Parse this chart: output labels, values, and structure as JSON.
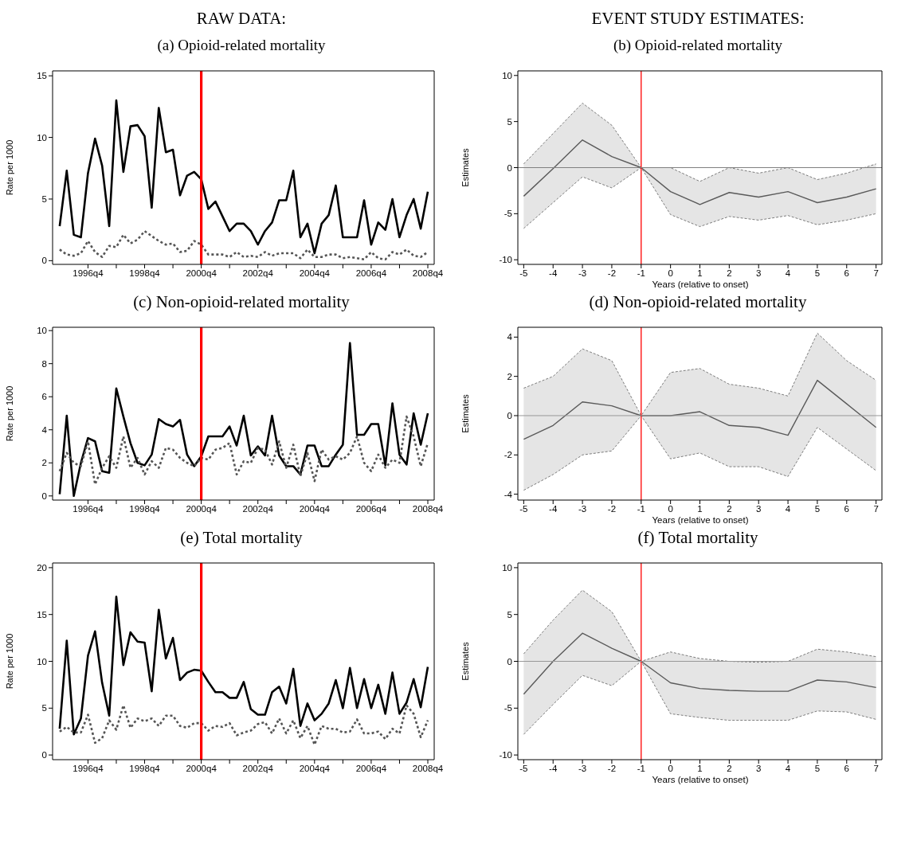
{
  "chart_data": [
    {
      "type": "line",
      "title": "RAW DATA:",
      "subtitle": "(a) Opioid-related mortality",
      "ylabel": "Rate per 1000",
      "categories": [
        null,
        null,
        null,
        null,
        "1996q4",
        null,
        null,
        null,
        null,
        null,
        null,
        null,
        "1998q4",
        null,
        null,
        null,
        null,
        null,
        null,
        null,
        "2000q4",
        null,
        null,
        null,
        null,
        null,
        null,
        null,
        "2002q4",
        null,
        null,
        null,
        null,
        null,
        null,
        null,
        "2004q4",
        null,
        null,
        null,
        null,
        null,
        null,
        null,
        "2006q4",
        null,
        null,
        null,
        null,
        null,
        null,
        null,
        "2008q4"
      ],
      "series": [
        {
          "color": "#000000",
          "line_style": "solid",
          "values": [
            2.8,
            7.3,
            2.1,
            1.9,
            7.1,
            9.9,
            7.7,
            2.8,
            13.0,
            7.2,
            10.9,
            11.0,
            10.1,
            4.3,
            12.4,
            8.8,
            9.0,
            5.3,
            6.9,
            7.2,
            6.6,
            4.2,
            4.8,
            3.6,
            2.4,
            3.0,
            3.0,
            2.4,
            1.3,
            2.4,
            3.1,
            4.9,
            4.9,
            7.3,
            1.9,
            3.0,
            0.6,
            3.0,
            3.7,
            6.1,
            1.9,
            1.9,
            1.9,
            4.9,
            1.3,
            3.1,
            2.5,
            5.0,
            1.9,
            3.7,
            5.0,
            2.6,
            5.6
          ]
        },
        {
          "color": "#555555",
          "line_style": "dotted",
          "values": [
            0.9,
            0.5,
            0.4,
            0.6,
            1.6,
            0.7,
            0.3,
            1.2,
            1.1,
            2.1,
            1.4,
            1.7,
            2.4,
            2.0,
            1.6,
            1.3,
            1.4,
            0.7,
            0.8,
            1.6,
            1.3,
            0.5,
            0.5,
            0.5,
            0.3,
            0.7,
            0.3,
            0.4,
            0.3,
            0.7,
            0.4,
            0.6,
            0.6,
            0.6,
            0.2,
            0.9,
            0.3,
            0.3,
            0.5,
            0.5,
            0.2,
            0.3,
            0.2,
            0.1,
            0.7,
            0.2,
            0.1,
            0.7,
            0.5,
            0.9,
            0.4,
            0.3,
            0.7
          ]
        }
      ],
      "ylim": [
        -0.3,
        15.4
      ],
      "yticks": [
        0,
        5,
        10,
        15
      ],
      "ref_lines": [
        {
          "axis": "x",
          "value": "2000q4",
          "color": "#ff0000"
        }
      ]
    },
    {
      "type": "line",
      "title": "EVENT STUDY ESTIMATES:",
      "subtitle": "(b) Opioid-related mortality",
      "xlabel": "Years (relative to onset)",
      "ylabel": "Estimates",
      "x": [
        -5,
        -4,
        -3,
        -2,
        -1,
        0,
        1,
        2,
        3,
        4,
        5,
        6,
        7
      ],
      "series": [
        {
          "color": "#5a5a5a",
          "line_style": "solid",
          "values": [
            -3.1,
            -0.1,
            3.0,
            1.2,
            0,
            -2.6,
            -4.0,
            -2.7,
            -3.2,
            -2.6,
            -3.8,
            -3.2,
            -2.3
          ],
          "lower": [
            -6.6,
            -3.8,
            -1.0,
            -2.2,
            0,
            -5.1,
            -6.4,
            -5.3,
            -5.7,
            -5.2,
            -6.2,
            -5.7,
            -5.0
          ],
          "upper": [
            0.4,
            3.7,
            7.0,
            4.6,
            0,
            0.0,
            -1.5,
            0.0,
            -0.6,
            0.0,
            -1.3,
            -0.6,
            0.4
          ]
        },
        {
          "color": "#6e6e6e",
          "line_style": "dashed",
          "values": [
            0.4,
            3.7,
            7.0,
            4.6,
            0,
            0.0,
            -1.5,
            0.0,
            -0.6,
            0.0,
            -1.3,
            -0.6,
            0.4
          ]
        },
        {
          "color": "#6e6e6e",
          "line_style": "dashed",
          "values": [
            -6.6,
            -3.8,
            -1.0,
            -2.2,
            0,
            -5.1,
            -6.4,
            -5.3,
            -5.7,
            -5.2,
            -6.2,
            -5.7,
            -5.0
          ]
        }
      ],
      "xlim": [
        -5.2,
        7.2
      ],
      "xticks": [
        -5,
        -4,
        -3,
        -2,
        -1,
        0,
        1,
        2,
        3,
        4,
        5,
        6,
        7
      ],
      "ylim": [
        -10.5,
        10.5
      ],
      "yticks": [
        -10,
        -5,
        0,
        5,
        10
      ],
      "ref_lines": [
        {
          "axis": "x",
          "value": -1,
          "color": "#ff0000"
        },
        {
          "axis": "y",
          "value": 0,
          "color": "#808080"
        }
      ]
    },
    {
      "type": "line",
      "title": "(c) Non-opioid-related mortality",
      "ylabel": "Rate per 1000",
      "categories": [
        null,
        null,
        null,
        null,
        "1996q4",
        null,
        null,
        null,
        null,
        null,
        null,
        null,
        "1998q4",
        null,
        null,
        null,
        null,
        null,
        null,
        null,
        "2000q4",
        null,
        null,
        null,
        null,
        null,
        null,
        null,
        "2002q4",
        null,
        null,
        null,
        null,
        null,
        null,
        null,
        "2004q4",
        null,
        null,
        null,
        null,
        null,
        null,
        null,
        "2006q4",
        null,
        null,
        null,
        null,
        null,
        null,
        null,
        "2008q4"
      ],
      "series": [
        {
          "color": "#000000",
          "line_style": "solid",
          "values": [
            0.1,
            4.85,
            0.0,
            2.0,
            3.5,
            3.3,
            1.5,
            1.4,
            6.5,
            4.8,
            3.2,
            2.0,
            1.85,
            2.5,
            4.65,
            4.35,
            4.2,
            4.6,
            2.5,
            1.8,
            2.4,
            3.6,
            3.6,
            3.6,
            4.2,
            3.05,
            4.85,
            2.45,
            3.0,
            2.45,
            4.85,
            2.45,
            1.8,
            1.8,
            1.3,
            3.05,
            3.05,
            1.8,
            1.8,
            2.5,
            3.1,
            9.25,
            3.7,
            3.7,
            4.35,
            4.35,
            1.85,
            5.6,
            2.5,
            1.9,
            5.0,
            3.1,
            5.0
          ]
        },
        {
          "color": "#555555",
          "line_style": "dotted",
          "values": [
            1.5,
            2.6,
            2.0,
            1.8,
            3.3,
            0.7,
            1.7,
            2.4,
            1.7,
            3.6,
            1.7,
            2.3,
            1.3,
            2.1,
            1.7,
            2.9,
            2.8,
            2.3,
            2.0,
            1.8,
            2.3,
            2.2,
            2.8,
            2.9,
            3.2,
            1.3,
            2.1,
            2.0,
            2.9,
            2.8,
            1.9,
            3.3,
            1.7,
            3.1,
            1.2,
            2.6,
            0.9,
            2.8,
            2.2,
            2.4,
            2.2,
            2.6,
            3.6,
            2.0,
            1.5,
            2.5,
            1.7,
            2.2,
            2.0,
            4.8,
            3.6,
            1.8,
            3.2
          ]
        }
      ],
      "ylim": [
        -0.25,
        10.2
      ],
      "yticks": [
        0,
        2,
        4,
        6,
        8,
        10
      ],
      "ref_lines": [
        {
          "axis": "x",
          "value": "2000q4",
          "color": "#ff0000"
        }
      ]
    },
    {
      "type": "line",
      "title": "(d) Non-opioid-related mortality",
      "xlabel": "Years (relative to onset)",
      "ylabel": "Estimates",
      "x": [
        -5,
        -4,
        -3,
        -2,
        -1,
        0,
        1,
        2,
        3,
        4,
        5,
        6,
        7
      ],
      "series": [
        {
          "color": "#5a5a5a",
          "line_style": "solid",
          "values": [
            -1.2,
            -0.5,
            0.7,
            0.5,
            0,
            0.0,
            0.2,
            -0.5,
            -0.6,
            -1.0,
            1.8,
            0.6,
            -0.6
          ],
          "lower": [
            -3.8,
            -3.0,
            -2.0,
            -1.8,
            0,
            -2.2,
            -1.9,
            -2.6,
            -2.6,
            -3.1,
            -0.6,
            -1.7,
            -2.8
          ],
          "upper": [
            1.4,
            2.0,
            3.4,
            2.8,
            0,
            2.2,
            2.4,
            1.6,
            1.4,
            1.0,
            4.2,
            2.8,
            1.8
          ]
        },
        {
          "color": "#6e6e6e",
          "line_style": "dashed",
          "values": [
            1.4,
            2.0,
            3.4,
            2.8,
            0,
            2.2,
            2.4,
            1.6,
            1.4,
            1.0,
            4.2,
            2.8,
            1.8
          ]
        },
        {
          "color": "#6e6e6e",
          "line_style": "dashed",
          "values": [
            -3.8,
            -3.0,
            -2.0,
            -1.8,
            0,
            -2.2,
            -1.9,
            -2.6,
            -2.6,
            -3.1,
            -0.6,
            -1.7,
            -2.8
          ]
        }
      ],
      "xlim": [
        -5.2,
        7.2
      ],
      "xticks": [
        -5,
        -4,
        -3,
        -2,
        -1,
        0,
        1,
        2,
        3,
        4,
        5,
        6,
        7
      ],
      "ylim": [
        -4.3,
        4.5
      ],
      "yticks": [
        -4,
        -2,
        0,
        2,
        4
      ],
      "ref_lines": [
        {
          "axis": "x",
          "value": -1,
          "color": "#ff0000"
        },
        {
          "axis": "y",
          "value": 0,
          "color": "#999999"
        }
      ]
    },
    {
      "type": "line",
      "title": "(e) Total mortality",
      "ylabel": "Rate per 1000",
      "categories": [
        null,
        null,
        null,
        null,
        "1996q4",
        null,
        null,
        null,
        null,
        null,
        null,
        null,
        "1998q4",
        null,
        null,
        null,
        null,
        null,
        null,
        null,
        "2000q4",
        null,
        null,
        null,
        null,
        null,
        null,
        null,
        "2002q4",
        null,
        null,
        null,
        null,
        null,
        null,
        null,
        "2004q4",
        null,
        null,
        null,
        null,
        null,
        null,
        null,
        "2006q4",
        null,
        null,
        null,
        null,
        null,
        null,
        null,
        "2008q4"
      ],
      "series": [
        {
          "color": "#000000",
          "line_style": "solid",
          "values": [
            2.8,
            12.2,
            2.2,
            3.9,
            10.6,
            13.2,
            7.7,
            4.2,
            16.9,
            9.6,
            13.1,
            12.1,
            12.0,
            6.8,
            15.5,
            10.3,
            12.5,
            8.0,
            8.8,
            9.1,
            9.0,
            7.8,
            6.7,
            6.7,
            6.1,
            6.1,
            7.8,
            4.9,
            4.3,
            4.3,
            6.7,
            7.3,
            5.5,
            9.2,
            3.1,
            5.5,
            3.7,
            4.4,
            5.5,
            8.0,
            5.0,
            9.3,
            5.0,
            8.1,
            5.0,
            7.5,
            4.4,
            8.8,
            4.4,
            5.6,
            8.1,
            5.1,
            9.4
          ]
        },
        {
          "color": "#555555",
          "line_style": "dotted",
          "values": [
            2.5,
            3.0,
            2.4,
            2.4,
            4.3,
            1.3,
            1.8,
            3.7,
            2.7,
            5.3,
            2.9,
            3.9,
            3.6,
            3.9,
            3.1,
            4.2,
            4.2,
            3.1,
            2.9,
            3.4,
            3.4,
            2.6,
            3.1,
            3.0,
            3.4,
            2.1,
            2.4,
            2.6,
            3.3,
            3.5,
            2.3,
            3.9,
            2.3,
            3.7,
            1.8,
            3.1,
            1.1,
            3.1,
            2.8,
            2.8,
            2.4,
            2.5,
            3.8,
            2.3,
            2.3,
            2.5,
            1.7,
            2.8,
            2.3,
            5.3,
            4.4,
            1.9,
            3.7
          ]
        }
      ],
      "ylim": [
        -0.5,
        20.5
      ],
      "yticks": [
        0,
        5,
        10,
        15,
        20
      ],
      "ref_lines": [
        {
          "axis": "x",
          "value": "2000q4",
          "color": "#ff0000"
        }
      ]
    },
    {
      "type": "line",
      "title": "(f) Total mortality",
      "xlabel": "Years (relative to onset)",
      "ylabel": "Estimates",
      "x": [
        -5,
        -4,
        -3,
        -2,
        -1,
        0,
        1,
        2,
        3,
        4,
        5,
        6,
        7
      ],
      "series": [
        {
          "color": "#5a5a5a",
          "line_style": "solid",
          "values": [
            -3.5,
            0.0,
            3.0,
            1.4,
            0,
            -2.3,
            -2.9,
            -3.1,
            -3.2,
            -3.2,
            -2.0,
            -2.2,
            -2.8
          ],
          "lower": [
            -7.8,
            -4.6,
            -1.5,
            -2.6,
            0,
            -5.6,
            -6.0,
            -6.3,
            -6.3,
            -6.3,
            -5.3,
            -5.4,
            -6.2
          ],
          "upper": [
            0.8,
            4.4,
            7.6,
            5.3,
            0,
            1.0,
            0.3,
            0.0,
            -0.1,
            0.0,
            1.3,
            1.0,
            0.5
          ]
        },
        {
          "color": "#6e6e6e",
          "line_style": "dashed",
          "values": [
            0.8,
            4.4,
            7.6,
            5.3,
            0,
            1.0,
            0.3,
            0.0,
            -0.1,
            0.0,
            1.3,
            1.0,
            0.5
          ]
        },
        {
          "color": "#6e6e6e",
          "line_style": "dashed",
          "values": [
            -7.8,
            -4.6,
            -1.5,
            -2.6,
            0,
            -5.6,
            -6.0,
            -6.3,
            -6.3,
            -6.3,
            -5.3,
            -5.4,
            -6.2
          ]
        }
      ],
      "xlim": [
        -5.2,
        7.2
      ],
      "xticks": [
        -5,
        -4,
        -3,
        -2,
        -1,
        0,
        1,
        2,
        3,
        4,
        5,
        6,
        7
      ],
      "ylim": [
        -10.5,
        10.5
      ],
      "yticks": [
        -10,
        -5,
        0,
        5,
        10
      ],
      "ref_lines": [
        {
          "axis": "x",
          "value": -1,
          "color": "#ff0000"
        },
        {
          "axis": "y",
          "value": 0,
          "color": "#999999"
        }
      ]
    }
  ]
}
